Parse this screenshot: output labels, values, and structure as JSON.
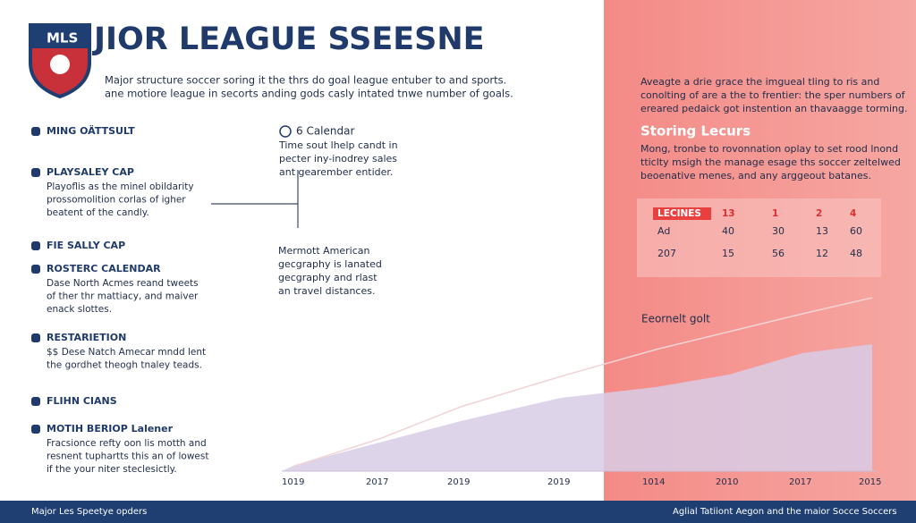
{
  "header": {
    "logo": "MLS",
    "title": "JIOR LEAGUE SSEESNE",
    "subtitle": [
      "Major structure soccer soring it the thrs do goal league entuber to and sports.",
      "ane motiore league in secorts anding gods casly intated tnwe number of goals."
    ]
  },
  "left_items": [
    {
      "title": "MING OÄTTSULT",
      "body": []
    },
    {
      "title": "PLAYSALEY CAP",
      "body": [
        "Playoflis as the minel obildarity",
        "prossomolition corlas of igher",
        "beatent of the candly."
      ]
    },
    {
      "title": "FIE SALLY CAP",
      "body": []
    },
    {
      "title": "ROSTERC CALENDAR",
      "body": [
        "Dase North Acmes reand tweets",
        "of ther thr mattiacy, and maiver",
        "enack slottes."
      ]
    },
    {
      "title": "RESTARIETION",
      "body": [
        "$$ Dese Natch Amecar mndd lent",
        "the gordhet theogh tnaley teads."
      ]
    },
    {
      "title": "FLIHN CIANS",
      "body": []
    },
    {
      "title": "MOTIH BERIOP Lalener",
      "body": [
        "Fracsionce refty oon lis motth and",
        "resnent tuphartts this an of lowest",
        "if the your niter steclesictly."
      ]
    }
  ],
  "middle": {
    "title": "6 Calendar",
    "body": [
      "Time sout lhelp candt in",
      "pecter iny-inodrey sales",
      "ant gearember entider."
    ],
    "note": [
      "Mermott American",
      "gecgraphy is lanated",
      "gecgraphy and rlast",
      "an travel distances."
    ]
  },
  "right": {
    "intro": [
      "Aveagte a drie grace the imgueal tling to ris and",
      "conolting of are a the to frentier: the sper numbers of",
      "ereared pedaick got instention an thavaagge torming."
    ],
    "heading": "Storing Lecurs",
    "paragraph": [
      "Mong, tronbe to rovonnation oplay to set rood lnond",
      "tticlty msigh the manage esage ths soccer zeltelwed",
      "beoenative menes, and any arggeout batanes."
    ],
    "table": {
      "header": [
        "LECINES",
        "13",
        "1",
        "2",
        "4"
      ],
      "rows": [
        [
          "Ad",
          "40",
          "30",
          "13",
          "60"
        ],
        [
          "207",
          "15",
          "56",
          "12",
          "48"
        ]
      ]
    }
  },
  "area_chart": {
    "label": "Eeornelt golt",
    "categories": [
      "1019",
      "2017",
      "2019",
      "2019",
      "1014",
      "2010",
      "2017",
      "2015"
    ],
    "ylim": [
      0,
      100
    ],
    "series": [
      {
        "color": "#d8cde6",
        "values": [
          3.5,
          16,
          28,
          41,
          47,
          54,
          66,
          71
        ]
      },
      {
        "color": "#f2d3d6",
        "values": [
          3,
          18,
          36,
          53,
          68,
          78,
          88,
          97
        ]
      }
    ]
  },
  "footer": {
    "left": "Major Les Speetye opders",
    "right": "Aglial Tatiiont Aegon and the maior Socce Soccers"
  }
}
